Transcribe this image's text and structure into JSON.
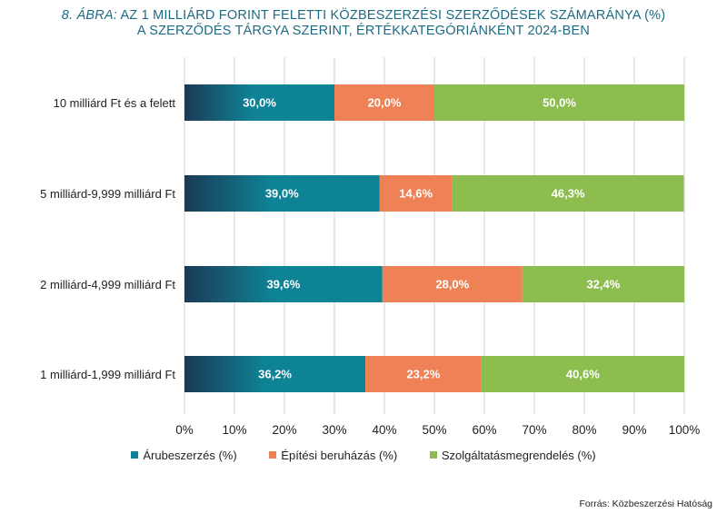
{
  "title": {
    "prefix": "8. ÁBRA:",
    "line1": "AZ 1 MILLIÁRD FORINT FELETTI KÖZBESZERZÉSI SZERZŐDÉSEK SZÁMARÁNYA (%)",
    "line2": "A SZERZŐDÉS TÁRGYA SZERINT, ÉRTÉKKATEGÓRIÁNKÉNT 2024-BEN"
  },
  "source": "Forrás: Közbeszerzési  Hatóság",
  "colors": {
    "arubeszerzes": "#0f8396",
    "arubeszerzes_dark": "#1a3a55",
    "epitesi": "#ee8155",
    "szolgaltatas": "#8dbd4f",
    "grid": "#d0d0d0"
  },
  "chart_data": {
    "type": "bar",
    "orientation": "horizontal",
    "stacked": true,
    "categories": [
      "10 milliárd Ft és a felett",
      "5 milliárd-9,999 milliárd Ft",
      "2 milliárd-4,999 milliárd Ft",
      "1 milliárd-1,999 milliárd Ft"
    ],
    "series": [
      {
        "name": "Árubeszerzés (%)",
        "values": [
          30.0,
          39.0,
          39.6,
          36.2
        ],
        "labels": [
          "30,0%",
          "39,0%",
          "39,6%",
          "36,2%"
        ]
      },
      {
        "name": "Építési beruházás (%)",
        "values": [
          20.0,
          14.6,
          28.0,
          23.2
        ],
        "labels": [
          "20,0%",
          "14,6%",
          "28,0%",
          "23,2%"
        ]
      },
      {
        "name": "Szolgáltatásmegrendelés (%)",
        "values": [
          50.0,
          46.3,
          32.4,
          40.6
        ],
        "labels": [
          "50,0%",
          "46,3%",
          "32,4%",
          "40,6%"
        ]
      }
    ],
    "xlim": [
      0,
      100
    ],
    "xticks": [
      "0%",
      "10%",
      "20%",
      "30%",
      "40%",
      "50%",
      "60%",
      "70%",
      "80%",
      "90%",
      "100%"
    ],
    "grid": true,
    "legend_position": "bottom"
  }
}
